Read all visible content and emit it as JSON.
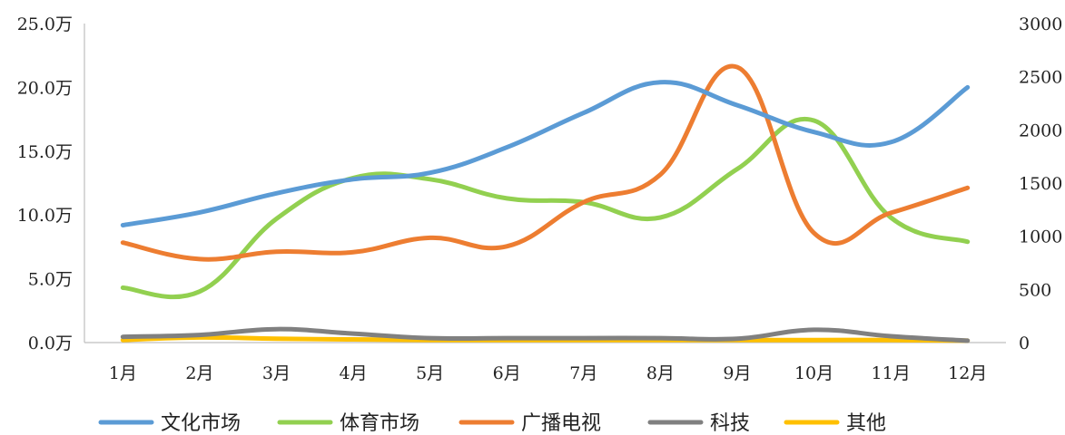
{
  "chart_data": {
    "type": "line",
    "smooth": true,
    "categories": [
      "1月",
      "2月",
      "3月",
      "4月",
      "5月",
      "6月",
      "7月",
      "8月",
      "9月",
      "10月",
      "11月",
      "12月"
    ],
    "y_left": {
      "min": 0,
      "max": 25,
      "step": 5,
      "tick_labels": [
        "0.0万",
        "5.0万",
        "10.0万",
        "15.0万",
        "20.0万",
        "25.0万"
      ]
    },
    "y_right": {
      "min": 0,
      "max": 3000,
      "step": 500,
      "tick_labels": [
        "0",
        "500",
        "1000",
        "1500",
        "2000",
        "2500",
        "3000"
      ]
    },
    "grid": false,
    "legend_position": "bottom",
    "series": [
      {
        "name": "文化市场",
        "axis": "left",
        "color": "#5B9BD5",
        "values": [
          9.2,
          10.2,
          11.7,
          12.8,
          13.3,
          15.3,
          18.0,
          20.4,
          18.6,
          16.5,
          15.7,
          20.0
        ]
      },
      {
        "name": "体育市场",
        "axis": "left",
        "color": "#92D050",
        "values": [
          4.3,
          4.0,
          9.7,
          12.9,
          12.8,
          11.3,
          11.0,
          9.8,
          13.6,
          17.4,
          9.8,
          7.9
        ]
      },
      {
        "name": "广播电视",
        "axis": "right",
        "color": "#ED7D31",
        "values": [
          940,
          785,
          855,
          850,
          985,
          905,
          1320,
          1580,
          2590,
          1030,
          1220,
          1455
        ]
      },
      {
        "name": "科技",
        "axis": "left",
        "color": "#808080",
        "values": [
          0.45,
          0.6,
          1.05,
          0.7,
          0.35,
          0.35,
          0.35,
          0.35,
          0.3,
          1.0,
          0.5,
          0.15
        ]
      },
      {
        "name": "其他",
        "axis": "left",
        "color": "#FFC000",
        "values": [
          0.2,
          0.4,
          0.3,
          0.25,
          0.2,
          0.2,
          0.2,
          0.2,
          0.2,
          0.2,
          0.2,
          0.15
        ]
      }
    ]
  }
}
